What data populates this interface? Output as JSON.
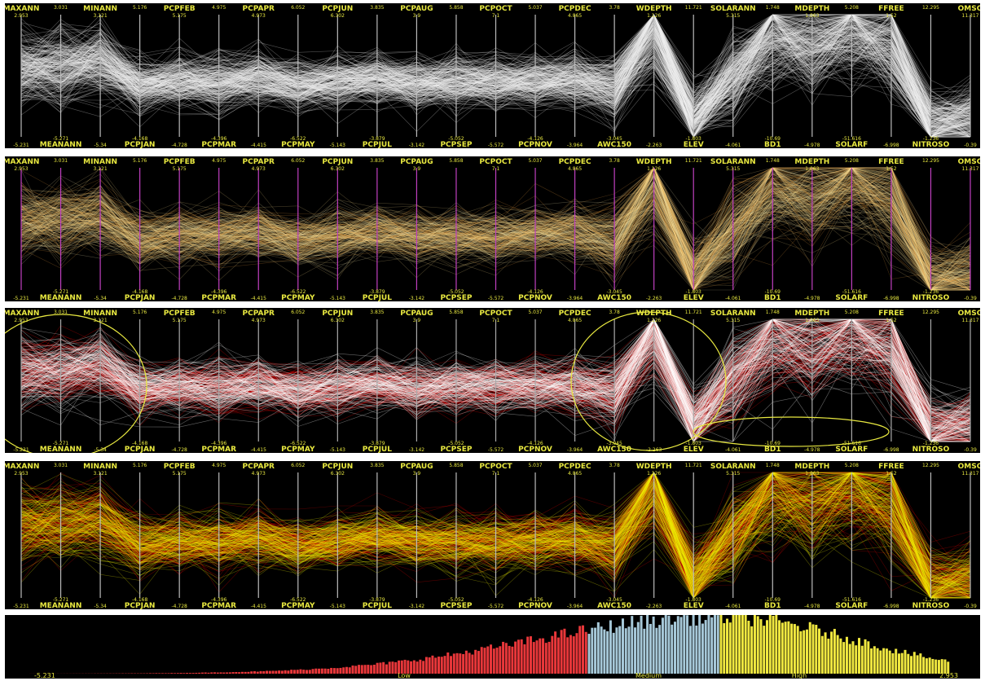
{
  "axes": [
    {
      "name": "MAXANN",
      "top": "2.953",
      "bottom": "-5.231"
    },
    {
      "name": "MEANANN",
      "top": "3.031",
      "bottom": "-5.271"
    },
    {
      "name": "MINANN",
      "top": "3.121",
      "bottom": "-5.34"
    },
    {
      "name": "PCPJAN",
      "top": "5.176",
      "bottom": "-4.168"
    },
    {
      "name": "PCPFEB",
      "top": "5.175",
      "bottom": "-4.728"
    },
    {
      "name": "PCPMAR",
      "top": "4.975",
      "bottom": "-4.396"
    },
    {
      "name": "PCPAPR",
      "top": "4.973",
      "bottom": "-4.415"
    },
    {
      "name": "PCPMAY",
      "top": "6.052",
      "bottom": "-6.522"
    },
    {
      "name": "PCPJUN",
      "top": "6.302",
      "bottom": "-5.143"
    },
    {
      "name": "PCPJUL",
      "top": "3.835",
      "bottom": "-3.879"
    },
    {
      "name": "PCPAUG",
      "top": "3.9",
      "bottom": "-3.142"
    },
    {
      "name": "PCPSEP",
      "top": "5.858",
      "bottom": "-5.052"
    },
    {
      "name": "PCPOCT",
      "top": "7.1",
      "bottom": "-5.572"
    },
    {
      "name": "PCPNOV",
      "top": "5.037",
      "bottom": "-4.126"
    },
    {
      "name": "PCPDEC",
      "top": "4.865",
      "bottom": "-3.964"
    },
    {
      "name": "AWC150",
      "top": "3.78",
      "bottom": "-3.045"
    },
    {
      "name": "WDEPTH",
      "top": "1.126",
      "bottom": "-2.263"
    },
    {
      "name": "ELEV",
      "top": "11.721",
      "bottom": "-1.803"
    },
    {
      "name": "SOLARANN",
      "top": "5.315",
      "bottom": "-4.061"
    },
    {
      "name": "BD1",
      "top": "1.748",
      "bottom": "-10.69"
    },
    {
      "name": "MDEPTH",
      "top": "1.063",
      "bottom": "-4.978"
    },
    {
      "name": "SOLARF",
      "top": "5.208",
      "bottom": "-51.616"
    },
    {
      "name": "FFREE",
      "top": "1.52",
      "bottom": "-6.998"
    },
    {
      "name": "NITROSO",
      "top": "12.295",
      "bottom": "-1.236"
    },
    {
      "name": "OMSO",
      "top": "11.317",
      "bottom": "-0.39"
    }
  ],
  "histogram": {
    "min_label": "-5.231",
    "max_label": "2.953",
    "group_labels": [
      "Low",
      "Medium",
      "High"
    ],
    "colors": {
      "low": "#e8373a",
      "medium": "#a6c8d8",
      "high": "#f0e840"
    }
  },
  "colors": {
    "label": "#e8e840",
    "panel1_line": "#f2f2f2",
    "panel2_axis": "#c040c0",
    "panel2_line": "#f5d78a",
    "panel3_high": "#ffffff",
    "panel3_low": "#e00000",
    "panel4_high": "#f0f000",
    "panel4_low": "#e80000",
    "brush": "#e8e840"
  },
  "chart_data": [
    {
      "type": "parallel-coordinates",
      "style": "white density lines",
      "axes_ref": "axes"
    },
    {
      "type": "parallel-coordinates",
      "style": "orange density lines with magenta axes",
      "axes_ref": "axes"
    },
    {
      "type": "parallel-coordinates",
      "style": "red/white brushed lines with yellow ellipse selections",
      "axes_ref": "axes"
    },
    {
      "type": "parallel-coordinates",
      "style": "red/yellow lines",
      "axes_ref": "axes"
    },
    {
      "type": "bar",
      "title": "",
      "categories_groups": [
        "Low",
        "Medium",
        "High"
      ],
      "x_range": [
        "-5.231",
        "2.953"
      ],
      "description_values": "histogram of MAXANN binned; red=Low, blue=Medium, yellow=High"
    }
  ]
}
